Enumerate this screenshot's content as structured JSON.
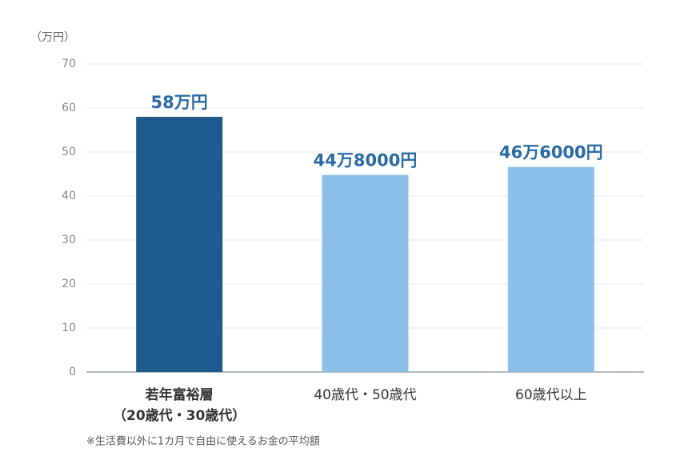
{
  "chart_data": {
    "type": "bar",
    "y_axis_label": "（万円）",
    "categories": [
      "若年富裕層\n（20歳代・30歳代）",
      "40歳代・50歳代",
      "60歳代以上"
    ],
    "values": [
      58,
      44.8,
      46.6
    ],
    "value_labels": [
      "58万円",
      "44万8000円",
      "46万6000円"
    ],
    "colors": [
      "#1f5a8f",
      "#8dc0e8",
      "#8dc0e8"
    ],
    "label_color": "#2a6aa3",
    "ylim": [
      0,
      70
    ],
    "yticks": [
      0,
      10,
      20,
      30,
      40,
      50,
      60,
      70
    ],
    "grid": true,
    "footnote": "※生活費以外に1カ月で自由に使えるお金の平均額"
  }
}
